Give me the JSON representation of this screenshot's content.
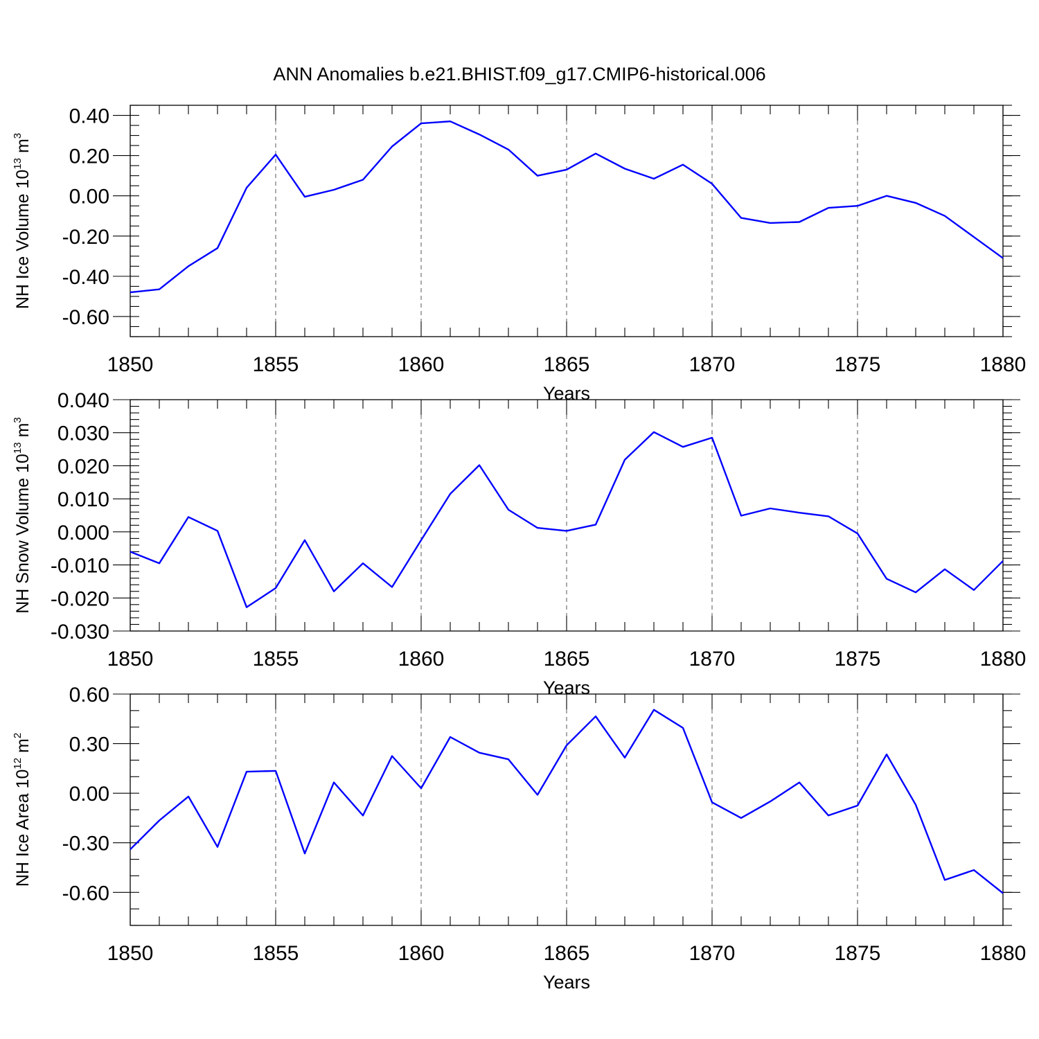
{
  "figure": {
    "title": "ANN Anomalies b.e21.BHIST.f09_g17.CMIP6-historical.006"
  },
  "colors": {
    "line": "#0000ff",
    "axis": "#000000",
    "grid": "#555555",
    "background": "#ffffff"
  },
  "chart_data": [
    {
      "type": "line",
      "title": "",
      "xlabel": "Years",
      "ylabel": {
        "main": "NH Ice Volume 10",
        "exp": "13",
        "unit": " m",
        "unit_exp": "3"
      },
      "xlim": [
        1850,
        1880
      ],
      "ylim": [
        -0.7,
        0.45
      ],
      "xticks": [
        1850,
        1855,
        1860,
        1865,
        1870,
        1875,
        1880
      ],
      "xtick_labels": [
        "1850",
        "1855",
        "1860",
        "1865",
        "1870",
        "1875",
        "1880"
      ],
      "yticks": [
        -0.6,
        -0.4,
        -0.2,
        0.0,
        0.2,
        0.4
      ],
      "ytick_labels": [
        "-0.60",
        "-0.40",
        "-0.20",
        "0.00",
        "0.20",
        "0.40"
      ],
      "y_minor_step": 0.05,
      "x": [
        1850,
        1851,
        1852,
        1853,
        1854,
        1855,
        1856,
        1857,
        1858,
        1859,
        1860,
        1861,
        1862,
        1863,
        1864,
        1865,
        1866,
        1867,
        1868,
        1869,
        1870,
        1871,
        1872,
        1873,
        1874,
        1875,
        1876,
        1877,
        1878,
        1879,
        1880
      ],
      "series": [
        {
          "name": "NH Ice Volume",
          "values": [
            -0.48,
            -0.465,
            -0.35,
            -0.26,
            0.04,
            0.205,
            -0.005,
            0.03,
            0.08,
            0.245,
            0.36,
            0.37,
            0.305,
            0.23,
            0.1,
            0.13,
            0.21,
            0.135,
            0.085,
            0.155,
            0.06,
            -0.11,
            -0.135,
            -0.13,
            -0.06,
            -0.05,
            0.0,
            -0.035,
            -0.1,
            -0.205,
            -0.31
          ]
        }
      ]
    },
    {
      "type": "line",
      "title": "",
      "xlabel": "Years",
      "ylabel": {
        "main": "NH Snow Volume 10",
        "exp": "13",
        "unit": " m",
        "unit_exp": "3"
      },
      "xlim": [
        1850,
        1880
      ],
      "ylim": [
        -0.03,
        0.04
      ],
      "xticks": [
        1850,
        1855,
        1860,
        1865,
        1870,
        1875,
        1880
      ],
      "xtick_labels": [
        "1850",
        "1855",
        "1860",
        "1865",
        "1870",
        "1875",
        "1880"
      ],
      "yticks": [
        -0.03,
        -0.02,
        -0.01,
        0.0,
        0.01,
        0.02,
        0.03,
        0.04
      ],
      "ytick_labels": [
        "-0.030",
        "-0.020",
        "-0.010",
        "0.000",
        "0.010",
        "0.020",
        "0.030",
        "0.040"
      ],
      "y_minor_step": 0.002,
      "x": [
        1850,
        1851,
        1852,
        1853,
        1854,
        1855,
        1856,
        1857,
        1858,
        1859,
        1860,
        1861,
        1862,
        1863,
        1864,
        1865,
        1866,
        1867,
        1868,
        1869,
        1870,
        1871,
        1872,
        1873,
        1874,
        1875,
        1876,
        1877,
        1878,
        1879,
        1880
      ],
      "series": [
        {
          "name": "NH Snow Volume",
          "values": [
            -0.006,
            -0.0095,
            0.0045,
            0.0003,
            -0.0228,
            -0.017,
            -0.0025,
            -0.018,
            -0.0095,
            -0.0167,
            -0.0025,
            0.0115,
            0.0202,
            0.0067,
            0.0012,
            0.0003,
            0.0022,
            0.0218,
            0.0302,
            0.0257,
            0.0285,
            0.0049,
            0.0071,
            0.0058,
            0.0047,
            -0.0005,
            -0.0142,
            -0.0183,
            -0.0113,
            -0.0176,
            -0.0088
          ]
        }
      ]
    },
    {
      "type": "line",
      "title": "",
      "xlabel": "Years",
      "ylabel": {
        "main": "NH Ice Area 10",
        "exp": "12",
        "unit": " m",
        "unit_exp": "2"
      },
      "xlim": [
        1850,
        1880
      ],
      "ylim": [
        -0.8,
        0.6
      ],
      "xticks": [
        1850,
        1855,
        1860,
        1865,
        1870,
        1875,
        1880
      ],
      "xtick_labels": [
        "1850",
        "1855",
        "1860",
        "1865",
        "1870",
        "1875",
        "1880"
      ],
      "yticks": [
        -0.6,
        -0.3,
        0.0,
        0.3,
        0.6
      ],
      "ytick_labels": [
        "-0.60",
        "-0.30",
        "0.00",
        "0.30",
        "0.60"
      ],
      "y_minor_step": 0.1,
      "x": [
        1850,
        1851,
        1852,
        1853,
        1854,
        1855,
        1856,
        1857,
        1858,
        1859,
        1860,
        1861,
        1862,
        1863,
        1864,
        1865,
        1866,
        1867,
        1868,
        1869,
        1870,
        1871,
        1872,
        1873,
        1874,
        1875,
        1876,
        1877,
        1878,
        1879,
        1880
      ],
      "series": [
        {
          "name": "NH Ice Area",
          "values": [
            -0.34,
            -0.165,
            -0.02,
            -0.325,
            0.13,
            0.135,
            -0.365,
            0.065,
            -0.135,
            0.225,
            0.03,
            0.34,
            0.245,
            0.205,
            -0.01,
            0.29,
            0.465,
            0.215,
            0.505,
            0.395,
            -0.055,
            -0.15,
            -0.05,
            0.065,
            -0.135,
            -0.075,
            0.235,
            -0.07,
            -0.525,
            -0.465,
            -0.605
          ]
        }
      ]
    }
  ]
}
